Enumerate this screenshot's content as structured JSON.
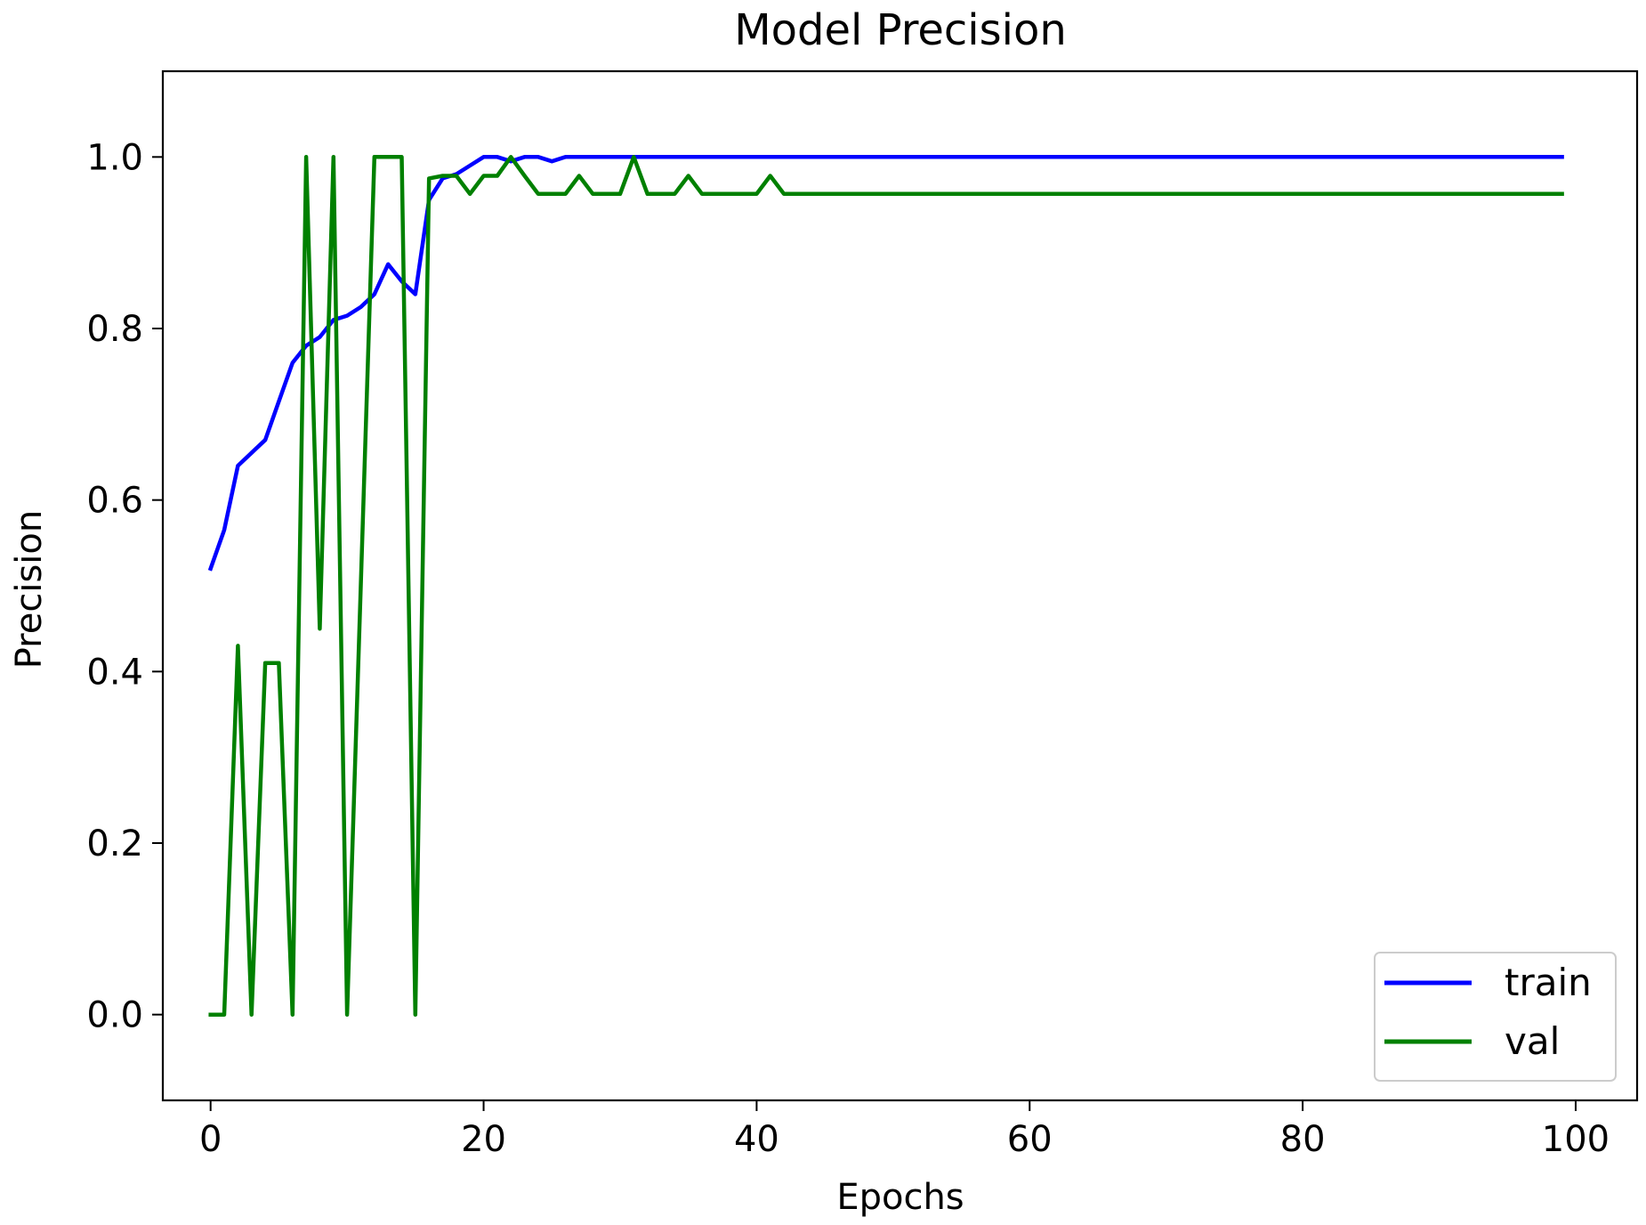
{
  "chart_data": {
    "type": "line",
    "title": "Model Precision",
    "xlabel": "Epochs",
    "ylabel": "Precision",
    "xlim": [
      -3.5,
      104.5
    ],
    "ylim": [
      -0.1,
      1.1
    ],
    "xticks": [
      0,
      20,
      40,
      60,
      80,
      100
    ],
    "yticks": [
      0.0,
      0.2,
      0.4,
      0.6,
      0.8,
      1.0
    ],
    "xtick_labels": [
      "0",
      "20",
      "40",
      "60",
      "80",
      "100"
    ],
    "ytick_labels": [
      "0.0",
      "0.2",
      "0.4",
      "0.6",
      "0.8",
      "1.0"
    ],
    "grid": false,
    "legend": {
      "position": "bottom-right"
    },
    "series": [
      {
        "name": "train",
        "color": "#0000ff",
        "x": [
          0,
          1,
          2,
          3,
          4,
          5,
          6,
          7,
          8,
          9,
          10,
          11,
          12,
          13,
          14,
          15,
          16,
          17,
          18,
          19,
          20,
          21,
          22,
          23,
          24,
          25,
          26,
          27,
          28,
          29,
          30,
          31,
          32,
          33,
          34,
          35,
          36,
          37,
          38,
          39,
          40,
          41,
          42,
          43,
          44,
          45,
          46,
          47,
          48,
          49,
          50,
          51,
          52,
          53,
          54,
          55,
          56,
          57,
          58,
          59,
          60,
          61,
          62,
          63,
          64,
          65,
          66,
          67,
          68,
          69,
          70,
          71,
          72,
          73,
          74,
          75,
          76,
          77,
          78,
          79,
          80,
          81,
          82,
          83,
          84,
          85,
          86,
          87,
          88,
          89,
          90,
          91,
          92,
          93,
          94,
          95,
          96,
          97,
          98,
          99
        ],
        "y": [
          0.52,
          0.565,
          0.64,
          0.655,
          0.67,
          0.715,
          0.76,
          0.78,
          0.79,
          0.81,
          0.815,
          0.825,
          0.84,
          0.875,
          0.855,
          0.84,
          0.95,
          0.975,
          0.98,
          0.99,
          1.0,
          1.0,
          0.995,
          1.0,
          1.0,
          0.995,
          1.0,
          1.0,
          1.0,
          1.0,
          1.0,
          1.0,
          1.0,
          1.0,
          1.0,
          1.0,
          1.0,
          1.0,
          1.0,
          1.0,
          1.0,
          1.0,
          1.0,
          1.0,
          1.0,
          1.0,
          1.0,
          1.0,
          1.0,
          1.0,
          1.0,
          1.0,
          1.0,
          1.0,
          1.0,
          1.0,
          1.0,
          1.0,
          1.0,
          1.0,
          1.0,
          1.0,
          1.0,
          1.0,
          1.0,
          1.0,
          1.0,
          1.0,
          1.0,
          1.0,
          1.0,
          1.0,
          1.0,
          1.0,
          1.0,
          1.0,
          1.0,
          1.0,
          1.0,
          1.0,
          1.0,
          1.0,
          1.0,
          1.0,
          1.0,
          1.0,
          1.0,
          1.0,
          1.0,
          1.0,
          1.0,
          1.0,
          1.0,
          1.0,
          1.0,
          1.0,
          1.0,
          1.0,
          1.0,
          1.0
        ]
      },
      {
        "name": "val",
        "color": "#008000",
        "x": [
          0,
          1,
          2,
          3,
          4,
          5,
          6,
          7,
          8,
          9,
          10,
          11,
          12,
          13,
          14,
          15,
          16,
          17,
          18,
          19,
          20,
          21,
          22,
          23,
          24,
          25,
          26,
          27,
          28,
          29,
          30,
          31,
          32,
          33,
          34,
          35,
          36,
          37,
          38,
          39,
          40,
          41,
          42,
          43,
          44,
          45,
          46,
          47,
          48,
          49,
          50,
          51,
          52,
          53,
          54,
          55,
          56,
          57,
          58,
          59,
          60,
          61,
          62,
          63,
          64,
          65,
          66,
          67,
          68,
          69,
          70,
          71,
          72,
          73,
          74,
          75,
          76,
          77,
          78,
          79,
          80,
          81,
          82,
          83,
          84,
          85,
          86,
          87,
          88,
          89,
          90,
          91,
          92,
          93,
          94,
          95,
          96,
          97,
          98,
          99
        ],
        "y": [
          0.0,
          0.0,
          0.43,
          0.0,
          0.41,
          0.41,
          0.0,
          1.0,
          0.45,
          1.0,
          0.0,
          0.5,
          1.0,
          1.0,
          1.0,
          0.0,
          0.975,
          0.978,
          0.978,
          0.957,
          0.978,
          0.978,
          1.0,
          0.978,
          0.957,
          0.957,
          0.957,
          0.978,
          0.957,
          0.957,
          0.957,
          1.0,
          0.957,
          0.957,
          0.957,
          0.978,
          0.957,
          0.957,
          0.957,
          0.957,
          0.957,
          0.978,
          0.957,
          0.957,
          0.957,
          0.957,
          0.957,
          0.957,
          0.957,
          0.957,
          0.957,
          0.957,
          0.957,
          0.957,
          0.957,
          0.957,
          0.957,
          0.957,
          0.957,
          0.957,
          0.957,
          0.957,
          0.957,
          0.957,
          0.957,
          0.957,
          0.957,
          0.957,
          0.957,
          0.957,
          0.957,
          0.957,
          0.957,
          0.957,
          0.957,
          0.957,
          0.957,
          0.957,
          0.957,
          0.957,
          0.957,
          0.957,
          0.957,
          0.957,
          0.957,
          0.957,
          0.957,
          0.957,
          0.957,
          0.957,
          0.957,
          0.957,
          0.957,
          0.957,
          0.957,
          0.957,
          0.957,
          0.957,
          0.957,
          0.957
        ]
      }
    ]
  }
}
